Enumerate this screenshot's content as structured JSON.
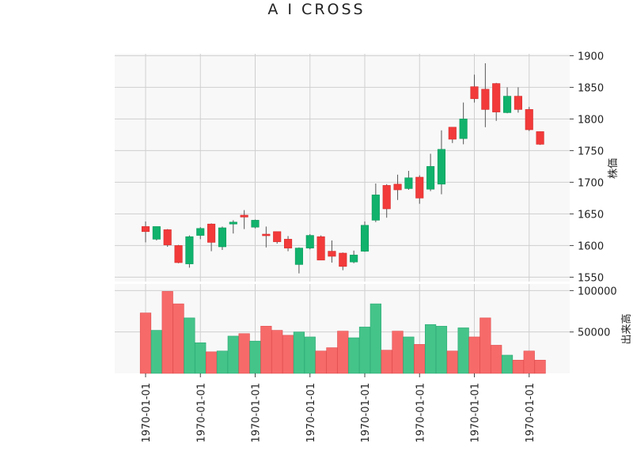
{
  "chart_data": {
    "type": "candlestick",
    "title": "A I CROSS",
    "ylabel": "株価",
    "volume_ylabel": "出来高",
    "x_tick_labels": [
      "1970-01-01",
      "1970-01-01",
      "1970-01-01",
      "1970-01-01",
      "1970-01-01",
      "1970-01-01",
      "1970-01-01",
      "1970-01-01"
    ],
    "price_ylim": [
      1543,
      1903
    ],
    "price_yticks": [
      1550,
      1600,
      1650,
      1700,
      1750,
      1800,
      1850,
      1900
    ],
    "volume_ylim": [
      0,
      108000
    ],
    "volume_yticks": [
      50000,
      100000
    ],
    "volume_ytick_labels": [
      "50000",
      "100000"
    ],
    "grid": true,
    "up_color": "#10b26c",
    "down_color": "#f23a3a",
    "up_volume_color": "#45c48a",
    "down_volume_color": "#f76a6a",
    "candles": [
      {
        "open": 1630,
        "high": 1638,
        "low": 1605,
        "close": 1622,
        "volume": 73000
      },
      {
        "open": 1610,
        "high": 1630,
        "low": 1608,
        "close": 1630,
        "volume": 52000
      },
      {
        "open": 1625,
        "high": 1626,
        "low": 1598,
        "close": 1601,
        "volume": 99000
      },
      {
        "open": 1600,
        "high": 1601,
        "low": 1572,
        "close": 1573,
        "volume": 84000
      },
      {
        "open": 1571,
        "high": 1616,
        "low": 1565,
        "close": 1614,
        "volume": 67000
      },
      {
        "open": 1616,
        "high": 1629,
        "low": 1610,
        "close": 1627,
        "volume": 37000
      },
      {
        "open": 1634,
        "high": 1635,
        "low": 1591,
        "close": 1605,
        "volume": 26000
      },
      {
        "open": 1598,
        "high": 1630,
        "low": 1593,
        "close": 1628,
        "volume": 27000
      },
      {
        "open": 1634,
        "high": 1640,
        "low": 1619,
        "close": 1637,
        "volume": 45000
      },
      {
        "open": 1648,
        "high": 1656,
        "low": 1626,
        "close": 1645,
        "volume": 48000
      },
      {
        "open": 1629,
        "high": 1641,
        "low": 1627,
        "close": 1640,
        "volume": 39000
      },
      {
        "open": 1618,
        "high": 1630,
        "low": 1597,
        "close": 1617,
        "volume": 57000
      },
      {
        "open": 1622,
        "high": 1622,
        "low": 1603,
        "close": 1606,
        "volume": 52000
      },
      {
        "open": 1610,
        "high": 1615,
        "low": 1591,
        "close": 1596,
        "volume": 46000
      },
      {
        "open": 1570,
        "high": 1597,
        "low": 1556,
        "close": 1596,
        "volume": 50000
      },
      {
        "open": 1596,
        "high": 1618,
        "low": 1594,
        "close": 1616,
        "volume": 44000
      },
      {
        "open": 1614,
        "high": 1616,
        "low": 1577,
        "close": 1577,
        "volume": 27000
      },
      {
        "open": 1591,
        "high": 1608,
        "low": 1573,
        "close": 1583,
        "volume": 31000
      },
      {
        "open": 1588,
        "high": 1589,
        "low": 1561,
        "close": 1567,
        "volume": 51000
      },
      {
        "open": 1574,
        "high": 1592,
        "low": 1572,
        "close": 1585,
        "volume": 43000
      },
      {
        "open": 1591,
        "high": 1638,
        "low": 1590,
        "close": 1632,
        "volume": 56000
      },
      {
        "open": 1640,
        "high": 1698,
        "low": 1637,
        "close": 1680,
        "volume": 84000
      },
      {
        "open": 1695,
        "high": 1697,
        "low": 1644,
        "close": 1658,
        "volume": 28000
      },
      {
        "open": 1697,
        "high": 1712,
        "low": 1672,
        "close": 1688,
        "volume": 51000
      },
      {
        "open": 1690,
        "high": 1718,
        "low": 1688,
        "close": 1707,
        "volume": 44000
      },
      {
        "open": 1708,
        "high": 1711,
        "low": 1666,
        "close": 1675,
        "volume": 35000
      },
      {
        "open": 1689,
        "high": 1745,
        "low": 1686,
        "close": 1725,
        "volume": 59000
      },
      {
        "open": 1697,
        "high": 1782,
        "low": 1681,
        "close": 1752,
        "volume": 57000
      },
      {
        "open": 1787,
        "high": 1787,
        "low": 1762,
        "close": 1768,
        "volume": 27000
      },
      {
        "open": 1769,
        "high": 1826,
        "low": 1760,
        "close": 1800,
        "volume": 55000
      },
      {
        "open": 1851,
        "high": 1870,
        "low": 1826,
        "close": 1832,
        "volume": 44000
      },
      {
        "open": 1847,
        "high": 1888,
        "low": 1787,
        "close": 1815,
        "volume": 67000
      },
      {
        "open": 1856,
        "high": 1857,
        "low": 1797,
        "close": 1811,
        "volume": 34000
      },
      {
        "open": 1810,
        "high": 1850,
        "low": 1809,
        "close": 1836,
        "volume": 22000
      },
      {
        "open": 1836,
        "high": 1850,
        "low": 1810,
        "close": 1815,
        "volume": 16000
      },
      {
        "open": 1815,
        "high": 1819,
        "low": 1781,
        "close": 1783,
        "volume": 27000
      },
      {
        "open": 1780,
        "high": 1780,
        "low": 1759,
        "close": 1760,
        "volume": 16000
      }
    ]
  }
}
